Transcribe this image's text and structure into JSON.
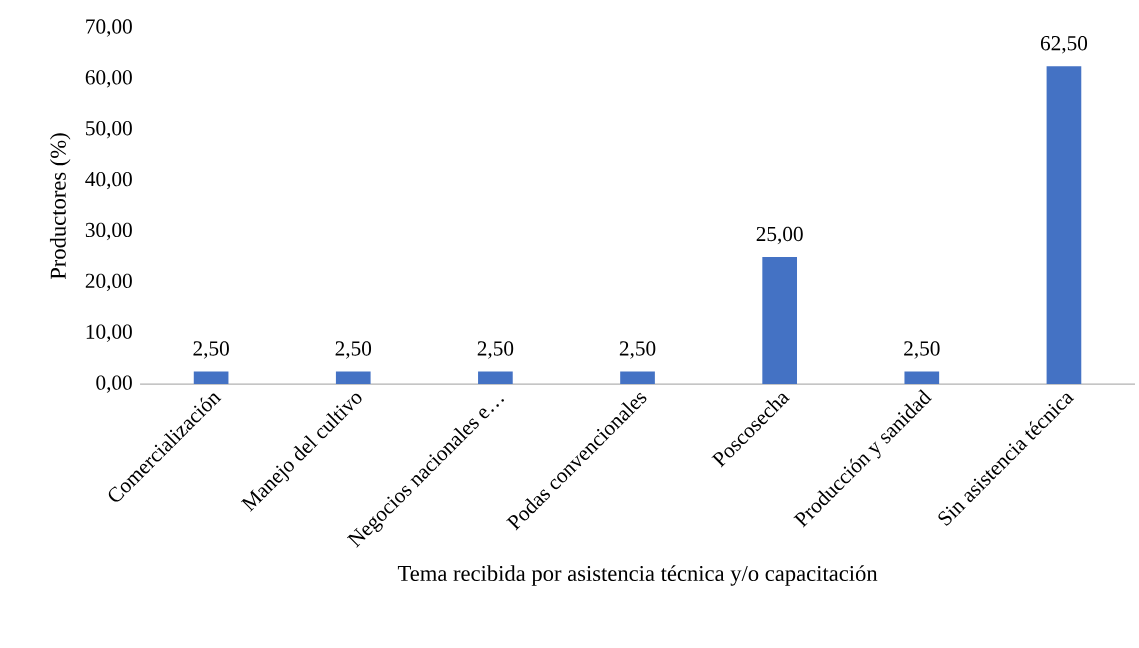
{
  "chart_data": {
    "type": "bar",
    "xlabel": "Tema recibida por asistencia técnica y/o capacitación",
    "ylabel": "Productores (%)",
    "categories": [
      "Comercialización",
      "Manejo del cultivo",
      "Negocios nacionales e…",
      "Podas convencionales",
      "Poscosecha",
      "Producción y sanidad",
      "Sin asistencia técnica"
    ],
    "values": [
      2.5,
      2.5,
      2.5,
      2.5,
      25,
      2.5,
      62.5
    ],
    "value_labels": [
      "2,50",
      "2,50",
      "2,50",
      "2,50",
      "25,00",
      "2,50",
      "62,50"
    ],
    "color": "#4472c4",
    "ylim": [
      0,
      70
    ],
    "yticks": [
      {
        "value": 0,
        "label": "0,00"
      },
      {
        "value": 10,
        "label": "10,00"
      },
      {
        "value": 20,
        "label": "20,00"
      },
      {
        "value": 30,
        "label": "30,00"
      },
      {
        "value": 40,
        "label": "40,00"
      },
      {
        "value": 50,
        "label": "50,00"
      },
      {
        "value": 60,
        "label": "60,00"
      },
      {
        "value": 70,
        "label": "70,00"
      }
    ],
    "grid": false
  }
}
